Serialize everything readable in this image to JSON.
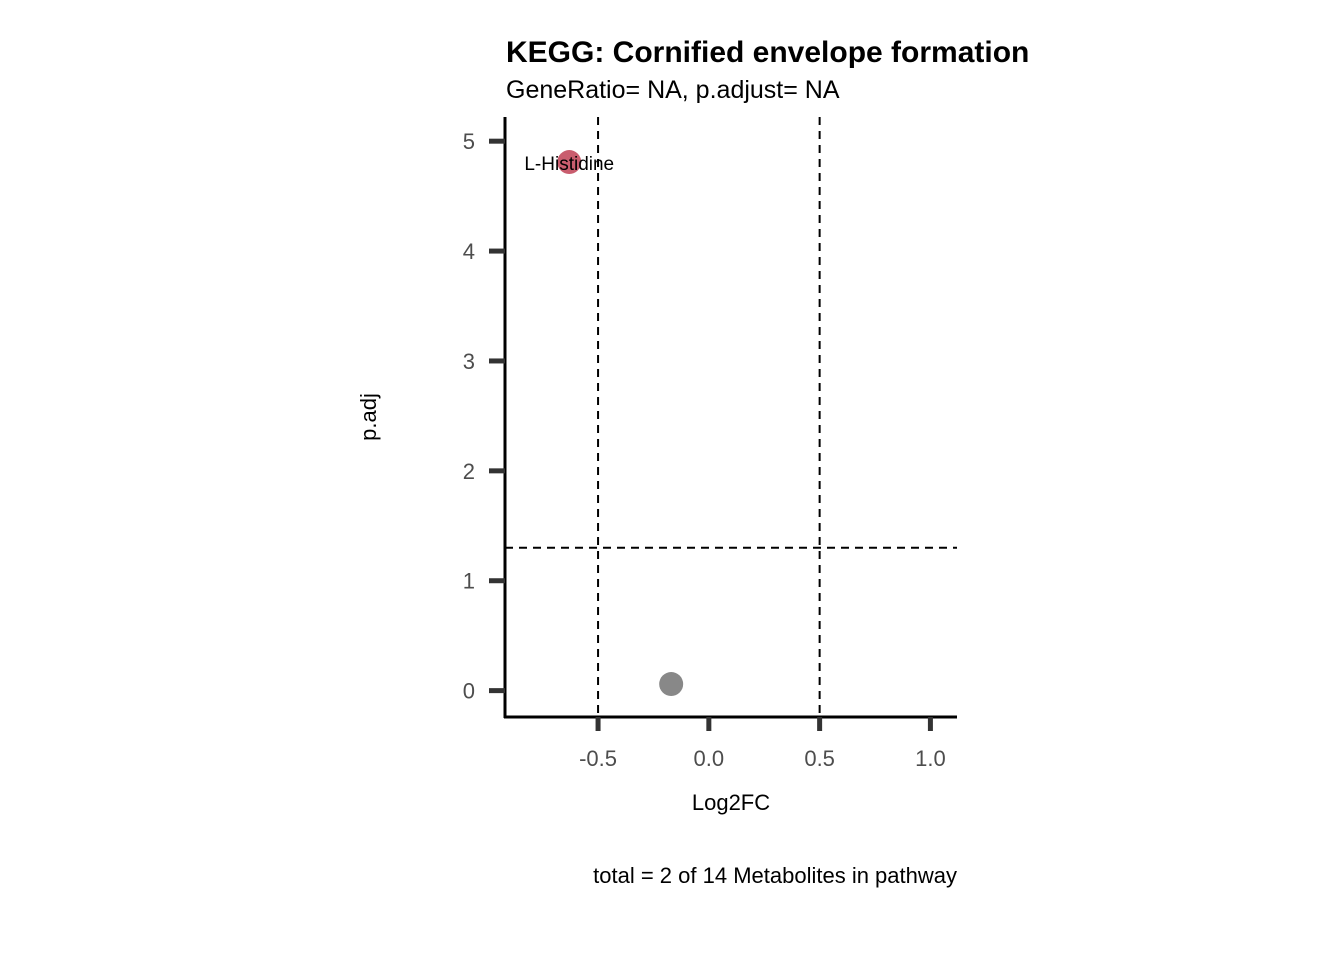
{
  "chart_data": {
    "type": "scatter",
    "title": "KEGG: Cornified envelope formation",
    "subtitle": "GeneRatio= NA, p.adjust= NA",
    "xlabel": "Log2FC",
    "ylabel": "p.adj",
    "caption": "total = 2 of 14 Metabolites in pathway",
    "xlim": [
      -0.92,
      1.12
    ],
    "ylim": [
      -0.24,
      5.22
    ],
    "xticks": [
      -0.5,
      0.0,
      0.5,
      1.0
    ],
    "xtick_labels": [
      "-0.5",
      "0.0",
      "0.5",
      "1.0"
    ],
    "yticks": [
      0,
      1,
      2,
      3,
      4,
      5
    ],
    "ytick_labels": [
      "0",
      "1",
      "2",
      "3",
      "4",
      "5"
    ],
    "vlines": [
      -0.5,
      0.5
    ],
    "hlines": [
      1.3
    ],
    "grid": false,
    "points": [
      {
        "x": -0.63,
        "y": 4.81,
        "label": "L-Histidine",
        "color": "#c95d6e"
      },
      {
        "x": -0.17,
        "y": 0.06,
        "label": "",
        "color": "#888888"
      }
    ]
  }
}
